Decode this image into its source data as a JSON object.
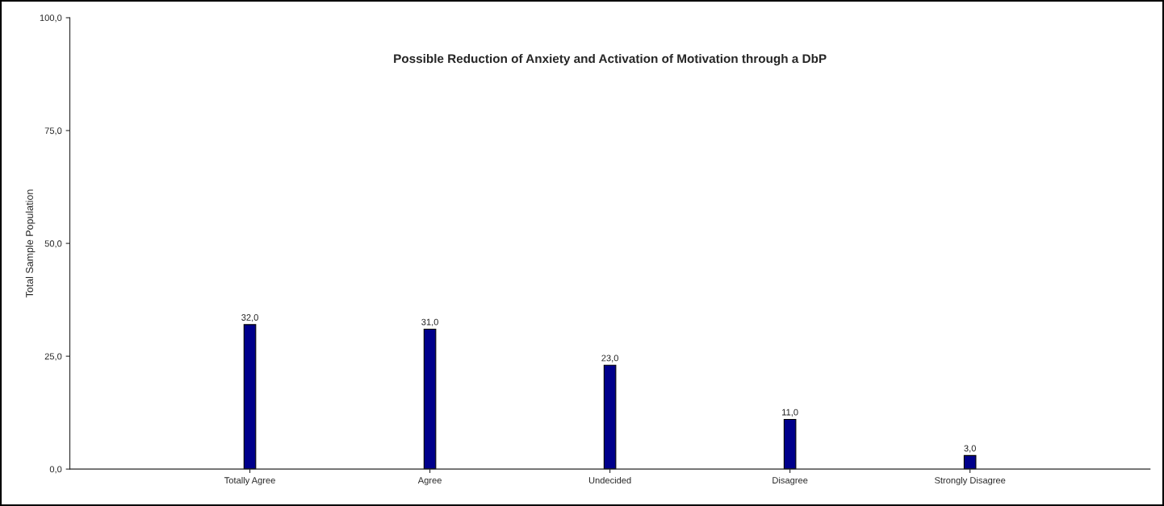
{
  "chart_data": {
    "type": "bar",
    "title": "Possible Reduction of Anxiety and Activation of Motivation through a DbP",
    "ylabel": "Total Sample Population",
    "categories": [
      "Totally Agree",
      "Agree",
      "Undecided",
      "Disagree",
      "Strongly Disagree"
    ],
    "values": [
      32,
      31,
      23,
      11,
      3
    ],
    "value_labels": [
      "32,0",
      "31,0",
      "23,0",
      "11,0",
      "3,0"
    ],
    "color": "#00008b",
    "ylim": [
      0,
      100
    ],
    "yticks": [
      {
        "value": 0,
        "label": "0,0"
      },
      {
        "value": 25,
        "label": "25,0"
      },
      {
        "value": 50,
        "label": "50,0"
      },
      {
        "value": 75,
        "label": "75,0"
      },
      {
        "value": 100,
        "label": "100,0"
      }
    ],
    "grid": false,
    "legend": false
  }
}
